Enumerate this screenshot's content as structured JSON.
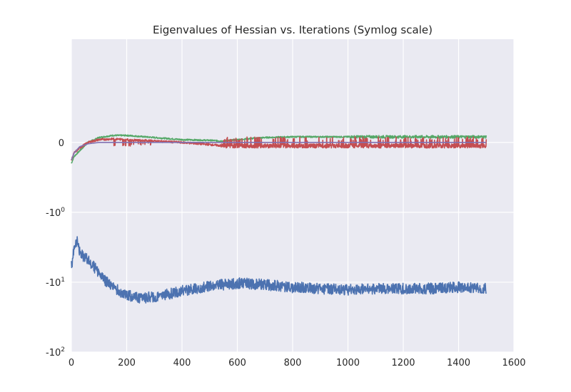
{
  "chart_data": {
    "type": "line",
    "title": "Eigenvalues of Hessian vs. Iterations (Symlog scale)",
    "xlabel": "",
    "ylabel": "",
    "xlim": [
      0,
      1600
    ],
    "ylim": [
      -100,
      3
    ],
    "yscale": "symlog",
    "linthresh": 1,
    "grid": true,
    "x_ticks": [
      {
        "value": 0,
        "label": "0"
      },
      {
        "value": 200,
        "label": "200"
      },
      {
        "value": 400,
        "label": "400"
      },
      {
        "value": 600,
        "label": "600"
      },
      {
        "value": 800,
        "label": "800"
      },
      {
        "value": 1000,
        "label": "1000"
      },
      {
        "value": 1200,
        "label": "1200"
      },
      {
        "value": 1400,
        "label": "1400"
      },
      {
        "value": 1600,
        "label": "1600"
      }
    ],
    "y_ticks": [
      {
        "value": 0,
        "base": "0",
        "exp": ""
      },
      {
        "value": -1,
        "base": "-10",
        "exp": "0"
      },
      {
        "value": -10,
        "base": "-10",
        "exp": "1"
      },
      {
        "value": -100,
        "base": "-10",
        "exp": "2"
      }
    ],
    "colors": {
      "background": "#eaeaf2",
      "grid": "#ffffff",
      "text": "#262626"
    },
    "series": [
      {
        "color": "#4c72b0",
        "x": [
          0,
          10,
          20,
          30,
          40,
          60,
          80,
          100,
          150,
          200,
          250,
          300,
          400,
          500,
          600,
          700,
          800,
          900,
          1000,
          1100,
          1200,
          1300,
          1400,
          1450,
          1500
        ],
        "y": [
          -6.0,
          -3.3,
          -2.6,
          -3.6,
          -4.3,
          -4.8,
          -6.0,
          -7.5,
          -12.0,
          -15.5,
          -17.0,
          -16.5,
          -13.5,
          -11.5,
          -10.5,
          -11.0,
          -12.0,
          -12.5,
          -13.0,
          -12.5,
          -12.5,
          -12.5,
          -12.0,
          -12.0,
          -12.5
        ]
      },
      {
        "color": "#55a868",
        "x": [
          0,
          10,
          30,
          60,
          100,
          150,
          200,
          300,
          400,
          500,
          550,
          600,
          700,
          800,
          1000,
          1200,
          1400,
          1500
        ],
        "y": [
          -0.3,
          -0.2,
          -0.12,
          0.0,
          0.07,
          0.1,
          0.1,
          0.07,
          0.04,
          0.03,
          0.02,
          0.04,
          0.07,
          0.08,
          0.08,
          0.08,
          0.08,
          0.08
        ]
      },
      {
        "color": "#c44e52",
        "x": [
          0,
          10,
          30,
          60,
          100,
          150,
          200,
          300,
          400,
          500,
          550,
          600,
          700,
          800,
          1000,
          1200,
          1400,
          1500
        ],
        "y": [
          -0.25,
          -0.15,
          -0.08,
          0.0,
          0.04,
          0.05,
          0.04,
          0.02,
          0.0,
          -0.03,
          -0.05,
          -0.05,
          -0.05,
          -0.05,
          -0.05,
          -0.05,
          -0.05,
          -0.05
        ]
      },
      {
        "color": "#8172b2",
        "x": [
          0,
          10,
          30,
          60,
          100,
          150,
          300,
          500,
          700,
          1000,
          1200,
          1500
        ],
        "y": [
          -0.25,
          -0.15,
          -0.06,
          -0.02,
          0.0,
          0.0,
          0.0,
          0.0,
          0.0,
          0.0,
          0.0,
          0.0
        ]
      }
    ]
  }
}
